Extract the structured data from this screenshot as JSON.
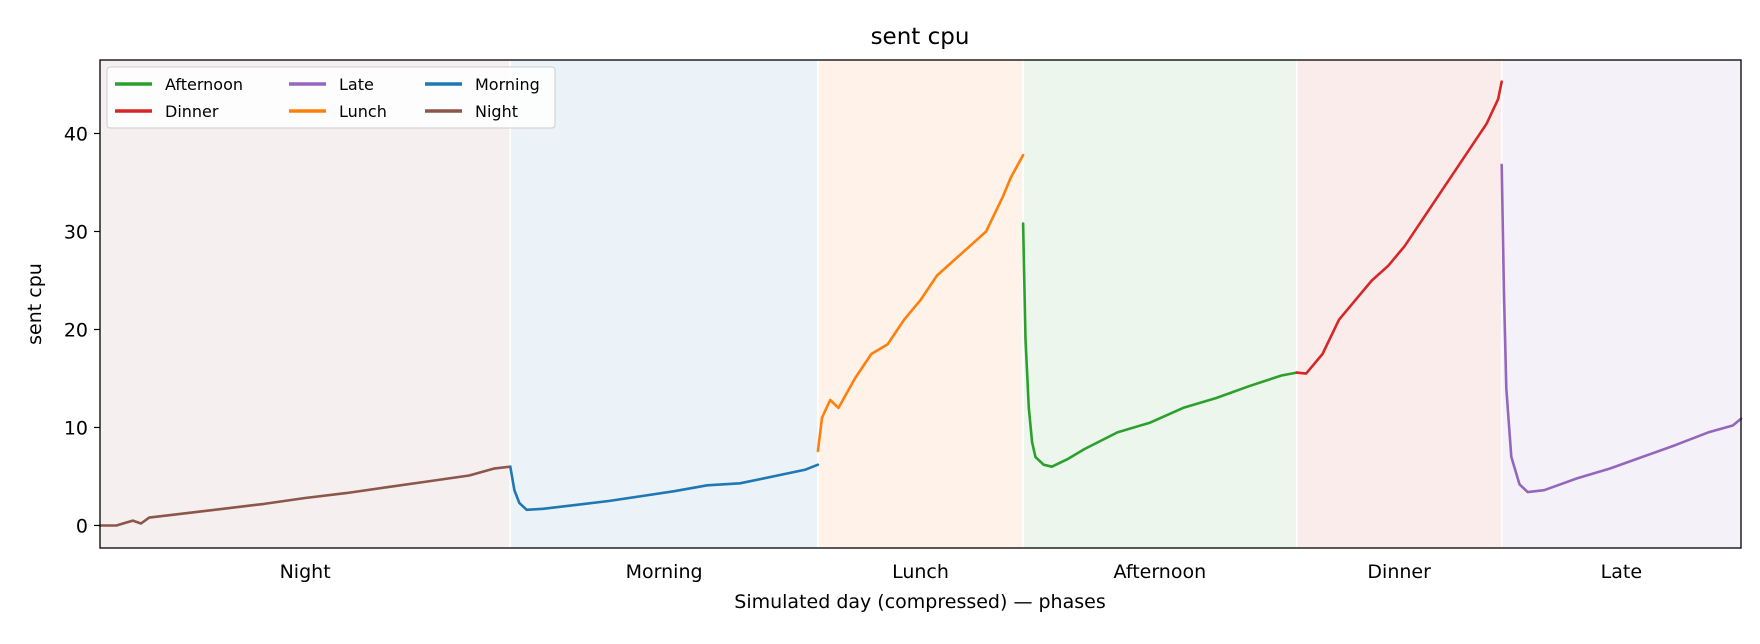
{
  "chart_data": {
    "type": "line",
    "title": "sent cpu",
    "xlabel": "Simulated day (compressed) — phases",
    "ylabel": "sent cpu",
    "ylim": [
      -2.3,
      47.5
    ],
    "yticks": [
      0,
      10,
      20,
      30,
      40
    ],
    "grid": false,
    "legend_position": "top-left",
    "x_unit": "fraction of simulated day",
    "phases": [
      {
        "name": "Night",
        "start": 0.0,
        "end": 0.25,
        "color": "#8c564b"
      },
      {
        "name": "Morning",
        "start": 0.25,
        "end": 0.4375,
        "color": "#1f77b4"
      },
      {
        "name": "Lunch",
        "start": 0.4375,
        "end": 0.5625,
        "color": "#ff7f0e"
      },
      {
        "name": "Afternoon",
        "start": 0.5625,
        "end": 0.7292,
        "color": "#2ca02c"
      },
      {
        "name": "Dinner",
        "start": 0.7292,
        "end": 0.8542,
        "color": "#d62728"
      },
      {
        "name": "Late",
        "start": 0.8542,
        "end": 1.0,
        "color": "#9467bd"
      }
    ],
    "legend": [
      {
        "label": "Afternoon",
        "color": "#2ca02c"
      },
      {
        "label": "Dinner",
        "color": "#d62728"
      },
      {
        "label": "Late",
        "color": "#9467bd"
      },
      {
        "label": "Lunch",
        "color": "#ff7f0e"
      },
      {
        "label": "Morning",
        "color": "#1f77b4"
      },
      {
        "label": "Night",
        "color": "#8c564b"
      }
    ],
    "series": [
      {
        "phase": "Night",
        "color": "#8c564b",
        "x": [
          0.0,
          0.01,
          0.02,
          0.025,
          0.03,
          0.05,
          0.075,
          0.1,
          0.125,
          0.15,
          0.175,
          0.2,
          0.225,
          0.24,
          0.25
        ],
        "y": [
          0.0,
          0.0,
          0.5,
          0.2,
          0.8,
          1.2,
          1.7,
          2.2,
          2.8,
          3.3,
          3.9,
          4.5,
          5.1,
          5.8,
          6.0
        ]
      },
      {
        "phase": "Morning",
        "color": "#1f77b4",
        "x": [
          0.25,
          0.2525,
          0.2555,
          0.26,
          0.27,
          0.29,
          0.31,
          0.33,
          0.35,
          0.37,
          0.39,
          0.41,
          0.43,
          0.4375
        ],
        "y": [
          6.0,
          3.6,
          2.3,
          1.6,
          1.7,
          2.1,
          2.5,
          3.0,
          3.5,
          4.1,
          4.3,
          5.0,
          5.7,
          6.2
        ]
      },
      {
        "phase": "Lunch",
        "color": "#ff7f0e",
        "x": [
          0.4375,
          0.44,
          0.445,
          0.45,
          0.46,
          0.47,
          0.48,
          0.49,
          0.5,
          0.51,
          0.52,
          0.53,
          0.54,
          0.55,
          0.555,
          0.5625
        ],
        "y": [
          7.6,
          11.0,
          12.8,
          12.0,
          15.0,
          17.5,
          18.5,
          21.0,
          23.0,
          25.5,
          27.0,
          28.5,
          30.0,
          33.5,
          35.5,
          37.8
        ]
      },
      {
        "phase": "Afternoon",
        "color": "#2ca02c",
        "x": [
          0.5625,
          0.564,
          0.566,
          0.568,
          0.57,
          0.575,
          0.58,
          0.59,
          0.6,
          0.62,
          0.64,
          0.66,
          0.68,
          0.7,
          0.72,
          0.7292
        ],
        "y": [
          30.8,
          19.0,
          12.0,
          8.5,
          7.0,
          6.2,
          6.0,
          6.8,
          7.8,
          9.5,
          10.5,
          12.0,
          13.0,
          14.2,
          15.3,
          15.6
        ]
      },
      {
        "phase": "Dinner",
        "color": "#d62728",
        "x": [
          0.7292,
          0.735,
          0.745,
          0.755,
          0.765,
          0.775,
          0.785,
          0.795,
          0.805,
          0.815,
          0.825,
          0.835,
          0.845,
          0.852,
          0.8542
        ],
        "y": [
          15.6,
          15.5,
          17.5,
          21.0,
          23.0,
          25.0,
          26.5,
          28.5,
          31.0,
          33.5,
          36.0,
          38.5,
          41.0,
          43.5,
          45.3
        ]
      },
      {
        "phase": "Late",
        "color": "#9467bd",
        "x": [
          0.8542,
          0.8555,
          0.857,
          0.86,
          0.865,
          0.87,
          0.88,
          0.89,
          0.9,
          0.92,
          0.94,
          0.96,
          0.98,
          0.995,
          1.0
        ],
        "y": [
          36.8,
          24.0,
          14.0,
          7.0,
          4.2,
          3.4,
          3.6,
          4.2,
          4.8,
          5.8,
          7.0,
          8.2,
          9.5,
          10.2,
          10.9
        ]
      }
    ]
  }
}
